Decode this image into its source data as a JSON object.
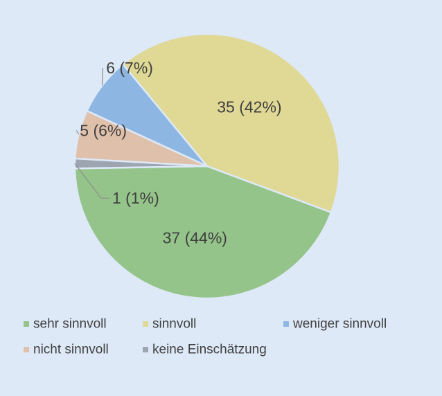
{
  "chart_data": {
    "type": "pie",
    "categories": [
      "sehr sinnvoll",
      "sinnvoll",
      "weniger sinnvoll",
      "nicht sinnvoll",
      "keine Einschätzung"
    ],
    "values": [
      37,
      35,
      6,
      5,
      1
    ],
    "data_labels": [
      "37 (44%)",
      "35 (42%)",
      "6 (7%)",
      "5 (6%)",
      "1 (1%)"
    ],
    "colors": [
      "#95c48b",
      "#e0d895",
      "#8eb6e3",
      "#dfc0ab",
      "#9ca5b0"
    ],
    "legend_position": "bottom",
    "title": ""
  },
  "colors": {
    "background": "#dde9f7",
    "slice_border": "#dde9f7",
    "leader_line": "#8c8c8c",
    "text": "#404040"
  }
}
